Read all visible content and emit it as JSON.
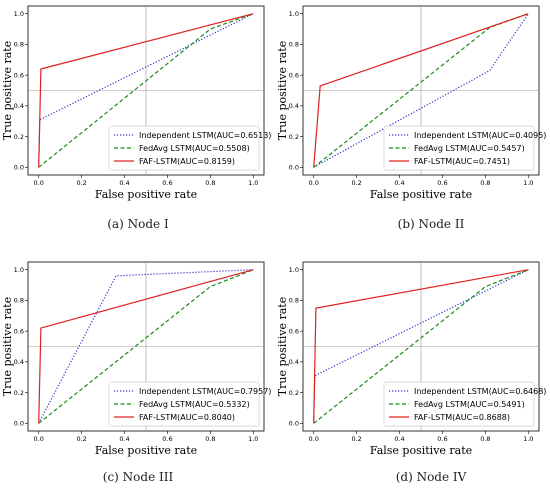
{
  "chart_data": [
    {
      "type": "line",
      "caption": "(a) Node I",
      "xlabel": "False positive rate",
      "ylabel": "True positive rate",
      "xlim": [
        0,
        1
      ],
      "ylim": [
        0,
        1
      ],
      "xticks": [
        "0.0",
        "0.2",
        "0.4",
        "0.6",
        "0.8",
        "1.0"
      ],
      "yticks": [
        "0.0",
        "0.2",
        "0.4",
        "0.6",
        "0.8",
        "1.0"
      ],
      "ref_lines": {
        "x": 0.5,
        "y": 0.5
      },
      "legend_loc": "bottom-right",
      "series": [
        {
          "name": "Independent LSTM(AUC=0.6513)",
          "style": "dotted",
          "color": "#3333cc",
          "x": [
            0,
            0.005,
            1
          ],
          "y": [
            0,
            0.31,
            1
          ]
        },
        {
          "name": "FedAvg LSTM(AUC=0.5508)",
          "style": "dashed",
          "color": "#1a8c1a",
          "x": [
            0,
            0.8,
            1
          ],
          "y": [
            0,
            0.9,
            1
          ]
        },
        {
          "name": "FAF-LSTM(AUC=0.8159)",
          "style": "solid",
          "color": "#e02020",
          "x": [
            0,
            0.01,
            1
          ],
          "y": [
            0,
            0.64,
            1
          ]
        }
      ]
    },
    {
      "type": "line",
      "caption": "(b) Node II",
      "xlabel": "False positive rate",
      "ylabel": "True positive rate",
      "xlim": [
        0,
        1
      ],
      "ylim": [
        0,
        1
      ],
      "xticks": [
        "0.0",
        "0.2",
        "0.4",
        "0.6",
        "0.8",
        "1.0"
      ],
      "yticks": [
        "0.0",
        "0.2",
        "0.4",
        "0.6",
        "0.8",
        "1.0"
      ],
      "ref_lines": {
        "x": 0.5,
        "y": 0.5
      },
      "legend_loc": "bottom-right",
      "series": [
        {
          "name": "Independent LSTM(AUC=0.4095)",
          "style": "dotted",
          "color": "#3333cc",
          "x": [
            0,
            0.82,
            1
          ],
          "y": [
            0,
            0.63,
            1
          ]
        },
        {
          "name": "FedAvg LSTM(AUC=0.5457)",
          "style": "dashed",
          "color": "#1a8c1a",
          "x": [
            0,
            0.82,
            1
          ],
          "y": [
            0,
            0.91,
            1
          ]
        },
        {
          "name": "FAF-LSTM(AUC=0.7451)",
          "style": "solid",
          "color": "#e02020",
          "x": [
            0,
            0.03,
            1
          ],
          "y": [
            0,
            0.53,
            1
          ]
        }
      ]
    },
    {
      "type": "line",
      "caption": "(c) Node III",
      "xlabel": "False positive rate",
      "ylabel": "True positive rate",
      "xlim": [
        0,
        1
      ],
      "ylim": [
        0,
        1
      ],
      "xticks": [
        "0.0",
        "0.2",
        "0.4",
        "0.6",
        "0.8",
        "1.0"
      ],
      "yticks": [
        "0.0",
        "0.2",
        "0.4",
        "0.6",
        "0.8",
        "1.0"
      ],
      "ref_lines": {
        "x": 0.5,
        "y": 0.5
      },
      "legend_loc": "bottom-right",
      "series": [
        {
          "name": "Independent LSTM(AUC=0.7957)",
          "style": "dotted",
          "color": "#3333cc",
          "x": [
            0,
            0.36,
            1
          ],
          "y": [
            0,
            0.96,
            1
          ]
        },
        {
          "name": "FedAvg LSTM(AUC=0.5332)",
          "style": "dashed",
          "color": "#1a8c1a",
          "x": [
            0,
            0.8,
            1
          ],
          "y": [
            0,
            0.89,
            1
          ]
        },
        {
          "name": "FAF-LSTM(AUC=0.8040)",
          "style": "solid",
          "color": "#e02020",
          "x": [
            0,
            0.01,
            1
          ],
          "y": [
            0,
            0.62,
            1
          ]
        }
      ]
    },
    {
      "type": "line",
      "caption": "(d) Node IV",
      "xlabel": "False positive rate",
      "ylabel": "True positive rate",
      "xlim": [
        0,
        1
      ],
      "ylim": [
        0,
        1
      ],
      "xticks": [
        "0.0",
        "0.2",
        "0.4",
        "0.6",
        "0.8",
        "1.0"
      ],
      "yticks": [
        "0.0",
        "0.2",
        "0.4",
        "0.6",
        "0.8",
        "1.0"
      ],
      "ref_lines": {
        "x": 0.5,
        "y": 0.5
      },
      "legend_loc": "bottom-right",
      "series": [
        {
          "name": "Independent LSTM(AUC=0.6468)",
          "style": "dotted",
          "color": "#3333cc",
          "x": [
            0,
            0.005,
            1
          ],
          "y": [
            0,
            0.31,
            1
          ]
        },
        {
          "name": "FedAvg LSTM(AUC=0.5491)",
          "style": "dashed",
          "color": "#1a8c1a",
          "x": [
            0,
            0.8,
            1
          ],
          "y": [
            0,
            0.89,
            1
          ]
        },
        {
          "name": "FAF-LSTM(AUC=0.8688)",
          "style": "solid",
          "color": "#e02020",
          "x": [
            0,
            0.01,
            1
          ],
          "y": [
            0,
            0.75,
            1
          ]
        }
      ]
    }
  ]
}
